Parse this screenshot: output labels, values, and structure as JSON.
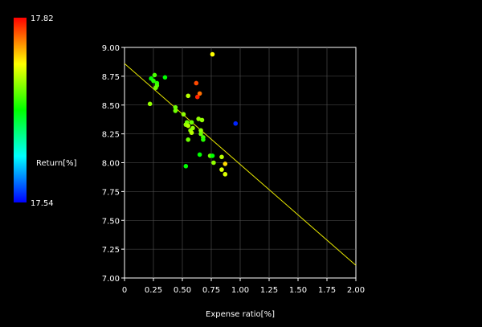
{
  "chart_data": {
    "type": "scatter",
    "title": "",
    "xlabel": "Expense ratio[%]",
    "ylabel": "",
    "xlim": [
      0,
      2.0
    ],
    "ylim": [
      7.0,
      9.0
    ],
    "x_ticks": [
      "0",
      "0.25",
      "0.50",
      "0.75",
      "1.00",
      "1.25",
      "1.50",
      "1.75",
      "2.00"
    ],
    "y_ticks": [
      "7.00",
      "7.25",
      "7.50",
      "7.75",
      "8.00",
      "8.25",
      "8.50",
      "8.75",
      "9.00"
    ],
    "grid": true,
    "color_scale": {
      "label": "Return[%]",
      "max_label": "17.82",
      "min_label": "17.54",
      "min": 17.54,
      "max": 17.82
    },
    "trend_line": {
      "x": [
        0,
        2.0
      ],
      "y": [
        8.86,
        7.11
      ],
      "color": "#e6e600"
    },
    "points": [
      {
        "x": 0.76,
        "y": 8.94,
        "c": 17.75
      },
      {
        "x": 0.26,
        "y": 8.76,
        "c": 17.7
      },
      {
        "x": 0.23,
        "y": 8.73,
        "c": 17.68
      },
      {
        "x": 0.25,
        "y": 8.71,
        "c": 17.69
      },
      {
        "x": 0.35,
        "y": 8.74,
        "c": 17.68
      },
      {
        "x": 0.28,
        "y": 8.69,
        "c": 17.69
      },
      {
        "x": 0.28,
        "y": 8.67,
        "c": 17.7
      },
      {
        "x": 0.27,
        "y": 8.65,
        "c": 17.71
      },
      {
        "x": 0.62,
        "y": 8.69,
        "c": 17.8
      },
      {
        "x": 0.65,
        "y": 8.6,
        "c": 17.79
      },
      {
        "x": 0.63,
        "y": 8.57,
        "c": 17.81
      },
      {
        "x": 0.55,
        "y": 8.58,
        "c": 17.73
      },
      {
        "x": 0.22,
        "y": 8.51,
        "c": 17.72
      },
      {
        "x": 0.44,
        "y": 8.48,
        "c": 17.71
      },
      {
        "x": 0.44,
        "y": 8.45,
        "c": 17.71
      },
      {
        "x": 0.51,
        "y": 8.42,
        "c": 17.72
      },
      {
        "x": 0.64,
        "y": 8.38,
        "c": 17.72
      },
      {
        "x": 0.67,
        "y": 8.37,
        "c": 17.72
      },
      {
        "x": 0.54,
        "y": 8.35,
        "c": 17.71
      },
      {
        "x": 0.53,
        "y": 8.33,
        "c": 17.72
      },
      {
        "x": 0.55,
        "y": 8.32,
        "c": 17.73
      },
      {
        "x": 0.58,
        "y": 8.35,
        "c": 17.71
      },
      {
        "x": 0.59,
        "y": 8.3,
        "c": 17.72
      },
      {
        "x": 0.57,
        "y": 8.28,
        "c": 17.72
      },
      {
        "x": 0.58,
        "y": 8.26,
        "c": 17.73
      },
      {
        "x": 0.66,
        "y": 8.28,
        "c": 17.72
      },
      {
        "x": 0.66,
        "y": 8.25,
        "c": 17.71
      },
      {
        "x": 0.68,
        "y": 8.22,
        "c": 17.7
      },
      {
        "x": 0.68,
        "y": 8.2,
        "c": 17.69
      },
      {
        "x": 0.55,
        "y": 8.2,
        "c": 17.71
      },
      {
        "x": 0.96,
        "y": 8.34,
        "c": 17.55
      },
      {
        "x": 0.65,
        "y": 8.07,
        "c": 17.68
      },
      {
        "x": 0.74,
        "y": 8.06,
        "c": 17.71
      },
      {
        "x": 0.76,
        "y": 8.06,
        "c": 17.68
      },
      {
        "x": 0.84,
        "y": 8.05,
        "c": 17.73
      },
      {
        "x": 0.77,
        "y": 8.0,
        "c": 17.72
      },
      {
        "x": 0.87,
        "y": 7.99,
        "c": 17.76
      },
      {
        "x": 0.53,
        "y": 7.97,
        "c": 17.68
      },
      {
        "x": 0.84,
        "y": 7.94,
        "c": 17.74
      },
      {
        "x": 0.87,
        "y": 7.9,
        "c": 17.74
      }
    ]
  }
}
